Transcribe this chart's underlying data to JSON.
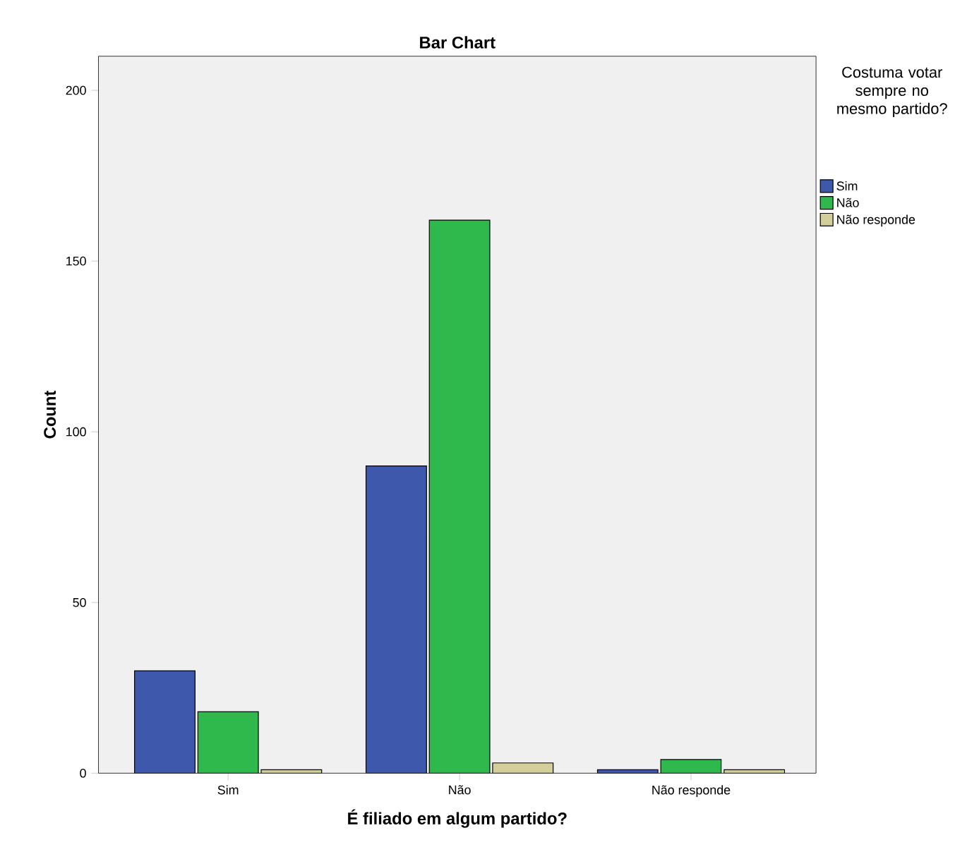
{
  "chart_data": {
    "type": "bar",
    "title": "Bar Chart",
    "xlabel": "É filiado em algum partido?",
    "ylabel": "Count",
    "legend_title": "Costuma votar sempre no mesmo partido?",
    "categories": [
      "Sim",
      "Não",
      "Não responde"
    ],
    "series": [
      {
        "name": "Sim",
        "color": "#3e58ac",
        "values": [
          30,
          90,
          1
        ]
      },
      {
        "name": "Não",
        "color": "#2fb84b",
        "values": [
          18,
          162,
          4
        ]
      },
      {
        "name": "Não responde",
        "color": "#d4cf9a",
        "values": [
          1,
          3,
          1
        ]
      }
    ],
    "ylim": [
      0,
      210
    ],
    "yticks": [
      0,
      50,
      100,
      150,
      200
    ],
    "grid": false,
    "legend": "top right"
  }
}
